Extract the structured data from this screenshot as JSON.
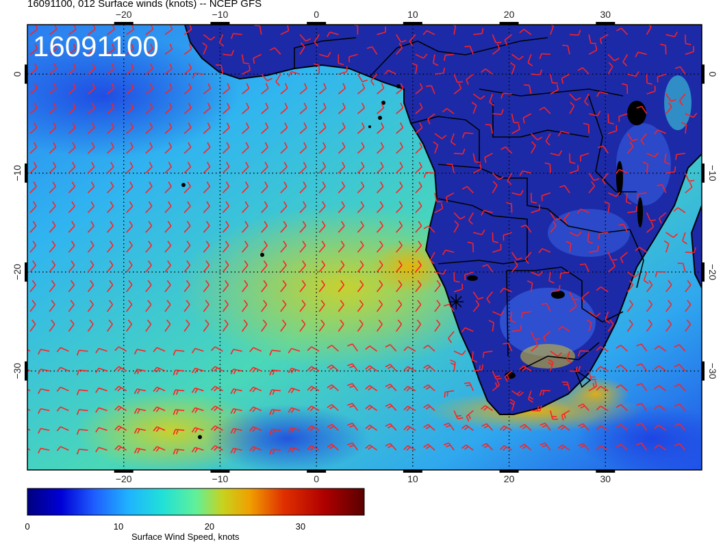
{
  "title": "16091100, 012 Surface winds (knots) -- NCEP GFS",
  "stamp": "16091100",
  "colors": {
    "barb": "#ff2020",
    "land": "#1c2aa8",
    "coast": "#000000",
    "grid": "#000000",
    "frame": "#000000"
  },
  "chart_data": {
    "type": "heatmap",
    "title": "16091100, 012 Surface winds (knots) -- NCEP GFS",
    "field": "Surface wind speed (knots) with wind barbs",
    "xlim": [
      -30,
      40
    ],
    "ylim": [
      -40,
      5
    ],
    "x_ticks": [
      {
        "value": -20,
        "label": "−20"
      },
      {
        "value": -10,
        "label": "−10"
      },
      {
        "value": 0,
        "label": "0"
      },
      {
        "value": 10,
        "label": "10"
      },
      {
        "value": 20,
        "label": "20"
      },
      {
        "value": 30,
        "label": "30"
      }
    ],
    "y_ticks": [
      {
        "value": 0,
        "label": "0"
      },
      {
        "value": -10,
        "label": "−10"
      },
      {
        "value": -20,
        "label": "−20"
      },
      {
        "value": -30,
        "label": "−30"
      }
    ],
    "grid": true,
    "colorbar": {
      "label": "Surface Wind Speed, knots",
      "range": [
        0,
        37
      ],
      "ticks": [
        {
          "value": 0,
          "label": "0"
        },
        {
          "value": 10,
          "label": "10"
        },
        {
          "value": 20,
          "label": "20"
        },
        {
          "value": 30,
          "label": "30"
        }
      ],
      "colors": [
        "#00007f",
        "#0000d6",
        "#1f5fff",
        "#1fb3ff",
        "#20e0d8",
        "#60f09a",
        "#c8d21e",
        "#f0a000",
        "#e03000",
        "#b00000",
        "#5a0000"
      ]
    },
    "marker": {
      "lon": 14.5,
      "lat": -23.0,
      "symbol": "asterisk"
    }
  }
}
